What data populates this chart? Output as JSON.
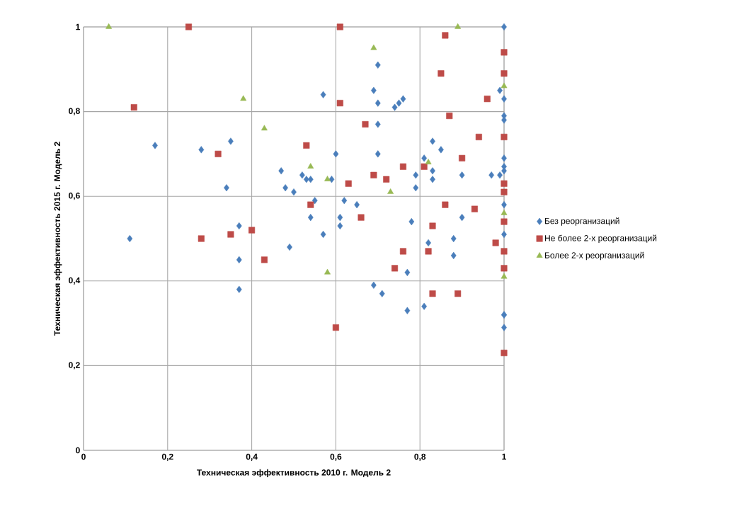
{
  "chart_data": {
    "type": "scatter",
    "xlabel": "Техническая эффективность 2010 г. Модель 2",
    "ylabel": "Техническая эффективность 2015 г. Модель 2",
    "xlim": [
      0,
      1
    ],
    "ylim": [
      0,
      1
    ],
    "xticks": [
      0,
      {
        "value": 0.2,
        "label": "0,2"
      },
      {
        "value": 0.4,
        "label": "0,4"
      },
      {
        "value": 0.6,
        "label": "0,6"
      },
      {
        "value": 0.8,
        "label": "0,8"
      },
      1
    ],
    "yticks": [
      0,
      {
        "value": 0.2,
        "label": "0,2"
      },
      {
        "value": 0.4,
        "label": "0,4"
      },
      {
        "value": 0.6,
        "label": "0,6"
      },
      {
        "value": 0.8,
        "label": "0,8"
      },
      1
    ],
    "grid": true,
    "legend": "right",
    "series": [
      {
        "name": "Без реорганизаций",
        "color": "#4a7ebb",
        "marker": "diamond",
        "x": [
          1.0,
          0.7,
          0.57,
          0.69,
          0.7,
          0.99,
          1.0,
          0.74,
          0.75,
          0.76,
          1.0,
          1.0,
          0.7,
          0.17,
          0.28,
          0.35,
          0.6,
          0.7,
          0.83,
          0.85,
          0.81,
          1.0,
          1.0,
          0.47,
          0.34,
          0.48,
          0.5,
          0.52,
          0.53,
          0.54,
          0.59,
          0.79,
          0.83,
          0.83,
          0.9,
          0.97,
          0.99,
          0.79,
          1.0,
          1.0,
          0.55,
          0.62,
          0.65,
          0.54,
          0.61,
          0.61,
          0.57,
          0.78,
          0.9,
          0.11,
          0.37,
          0.37,
          0.37,
          0.49,
          0.82,
          0.88,
          0.88,
          0.77,
          0.69,
          0.71,
          0.77,
          0.81,
          1.0,
          1.0,
          1.0,
          1.0
        ],
        "values": [
          1.0,
          0.91,
          0.84,
          0.85,
          0.82,
          0.85,
          0.83,
          0.81,
          0.82,
          0.83,
          0.79,
          0.78,
          0.77,
          0.72,
          0.71,
          0.73,
          0.7,
          0.7,
          0.73,
          0.71,
          0.69,
          0.69,
          0.67,
          0.66,
          0.62,
          0.62,
          0.61,
          0.65,
          0.64,
          0.64,
          0.64,
          0.65,
          0.66,
          0.64,
          0.65,
          0.65,
          0.65,
          0.62,
          0.66,
          0.58,
          0.59,
          0.59,
          0.58,
          0.55,
          0.55,
          0.53,
          0.51,
          0.54,
          0.55,
          0.5,
          0.53,
          0.45,
          0.38,
          0.48,
          0.49,
          0.5,
          0.46,
          0.42,
          0.39,
          0.37,
          0.33,
          0.34,
          0.51,
          0.32,
          0.32,
          0.29
        ]
      },
      {
        "name": "Не более 2-х реорганизаций",
        "color": "#be4b48",
        "marker": "square",
        "x": [
          0.25,
          0.61,
          0.86,
          1.0,
          1.0,
          0.85,
          0.96,
          0.61,
          0.12,
          0.87,
          0.67,
          0.94,
          1.0,
          0.53,
          0.32,
          0.9,
          0.76,
          0.81,
          0.69,
          0.72,
          0.63,
          1.0,
          1.0,
          0.54,
          0.86,
          0.93,
          0.66,
          1.0,
          0.83,
          0.98,
          0.28,
          0.35,
          0.4,
          0.43,
          1.0,
          1.0,
          0.76,
          0.82,
          0.74,
          0.83,
          0.89,
          0.6,
          1.0
        ],
        "values": [
          1.0,
          1.0,
          0.98,
          0.94,
          0.89,
          0.89,
          0.83,
          0.82,
          0.81,
          0.79,
          0.77,
          0.74,
          0.74,
          0.72,
          0.7,
          0.69,
          0.67,
          0.67,
          0.65,
          0.64,
          0.63,
          0.63,
          0.61,
          0.58,
          0.58,
          0.57,
          0.55,
          0.54,
          0.53,
          0.49,
          0.5,
          0.51,
          0.52,
          0.45,
          0.47,
          0.43,
          0.47,
          0.47,
          0.43,
          0.37,
          0.37,
          0.29,
          0.23
        ]
      },
      {
        "name": "Более 2-х реорганизаций",
        "color": "#98b954",
        "marker": "triangle",
        "x": [
          0.06,
          0.89,
          0.69,
          1.0,
          0.38,
          0.43,
          0.54,
          0.82,
          0.58,
          0.73,
          1.0,
          0.58,
          1.0
        ],
        "values": [
          1.0,
          1.0,
          0.95,
          0.86,
          0.83,
          0.76,
          0.67,
          0.68,
          0.64,
          0.61,
          0.56,
          0.42,
          0.41
        ]
      }
    ]
  }
}
